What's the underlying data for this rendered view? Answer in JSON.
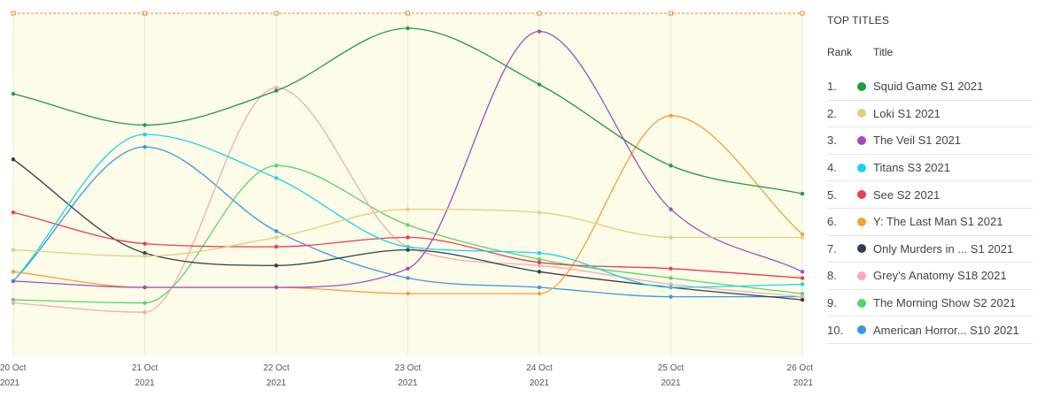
{
  "legend": {
    "title": "TOP TITLES",
    "rank_header": "Rank",
    "title_header": "Title"
  },
  "chart_data": {
    "type": "line",
    "categories": [
      "20 Oct 2021",
      "21 Oct 2021",
      "22 Oct 2021",
      "23 Oct 2021",
      "24 Oct 2021",
      "25 Oct 2021",
      "26 Oct 2021"
    ],
    "x_tick_labels": [
      {
        "day": "20 Oct",
        "year": "2021"
      },
      {
        "day": "21 Oct",
        "year": "2021"
      },
      {
        "day": "22 Oct",
        "year": "2021"
      },
      {
        "day": "23 Oct",
        "year": "2021"
      },
      {
        "day": "24 Oct",
        "year": "2021"
      },
      {
        "day": "25 Oct",
        "year": "2021"
      },
      {
        "day": "26 Oct",
        "year": "2021"
      }
    ],
    "ylim": [
      0,
      100
    ],
    "background": "#fcfce8",
    "top_line_color": "#f4863c",
    "series": [
      {
        "rank": "1.",
        "name": "Squid Game S1 2021",
        "color": "#1f9a45",
        "values": [
          79,
          69,
          80,
          100,
          82,
          56,
          47
        ]
      },
      {
        "rank": "2.",
        "name": "Loki S1 2021",
        "color": "#e2cf7a",
        "values": [
          29,
          27,
          33,
          42,
          41,
          33,
          33
        ]
      },
      {
        "rank": "3.",
        "name": "The Veil S1 2021",
        "color": "#a24cc0",
        "values": [
          19,
          17,
          17,
          23,
          99,
          42,
          22
        ]
      },
      {
        "rank": "4.",
        "name": "Titans S3 2021",
        "color": "#1ed1ee",
        "values": [
          19,
          66,
          52,
          30,
          28,
          17,
          18
        ]
      },
      {
        "rank": "5.",
        "name": "See S2 2021",
        "color": "#ec3b55",
        "values": [
          41,
          31,
          30,
          33,
          25,
          23,
          20
        ]
      },
      {
        "rank": "6.",
        "name": "Y: The Last Man S1 2021",
        "color": "#f6a03a",
        "values": [
          22,
          17,
          17,
          15,
          15,
          72,
          34
        ]
      },
      {
        "rank": "7.",
        "name": "Only Murders in ... S1 2021",
        "color": "#2f3f52",
        "values": [
          58,
          28,
          24,
          29,
          22,
          17,
          13
        ]
      },
      {
        "rank": "8.",
        "name": "Grey's Anatomy S18 2021",
        "color": "#f7a9b8",
        "values": [
          12,
          9,
          81,
          30,
          24,
          18,
          14
        ]
      },
      {
        "rank": "9.",
        "name": "The Morning Show S2 2021",
        "color": "#5bd36b",
        "values": [
          13,
          12,
          56,
          37,
          26,
          20,
          15
        ]
      },
      {
        "rank": "10.",
        "name": "American Horror... S10 2021",
        "color": "#3a97e6",
        "values": [
          19,
          62,
          35,
          20,
          17,
          14,
          14
        ]
      }
    ]
  }
}
